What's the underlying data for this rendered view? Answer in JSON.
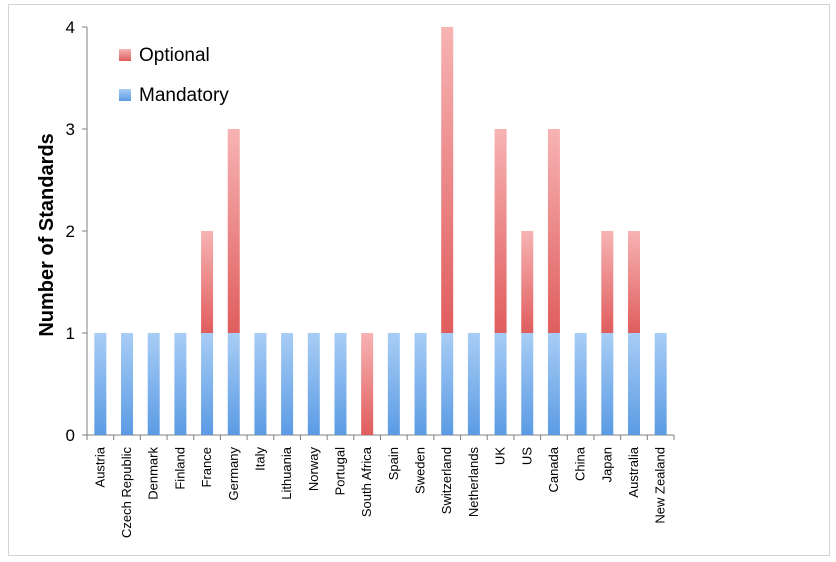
{
  "chart_data": {
    "type": "bar",
    "stacked": true,
    "title": "",
    "xlabel": "",
    "ylabel": "Number of Standards",
    "ylim": [
      0,
      4
    ],
    "yticks": [
      0,
      1,
      2,
      3,
      4
    ],
    "grid": false,
    "legend_position": "top-left",
    "categories": [
      "Austria",
      "Czech Republic",
      "Denmark",
      "Finland",
      "France",
      "Germany",
      "Italy",
      "Lithuania",
      "Norway",
      "Portugal",
      "South Africa",
      "Spain",
      "Sweden",
      "Switzerland",
      "Netherlands",
      "UK",
      "US",
      "Canada",
      "China",
      "Japan",
      "Australia",
      "New Zealand"
    ],
    "series": [
      {
        "name": "Mandatory",
        "color": "#6aa6e8",
        "values": [
          1,
          1,
          1,
          1,
          1,
          1,
          1,
          1,
          1,
          1,
          0,
          1,
          1,
          1,
          1,
          1,
          1,
          1,
          1,
          1,
          1,
          1
        ]
      },
      {
        "name": "Optional",
        "color": "#e86a6a",
        "values": [
          0,
          0,
          0,
          0,
          1,
          2,
          0,
          0,
          0,
          0,
          1,
          0,
          0,
          3,
          0,
          2,
          1,
          2,
          0,
          1,
          1,
          0
        ]
      }
    ]
  }
}
